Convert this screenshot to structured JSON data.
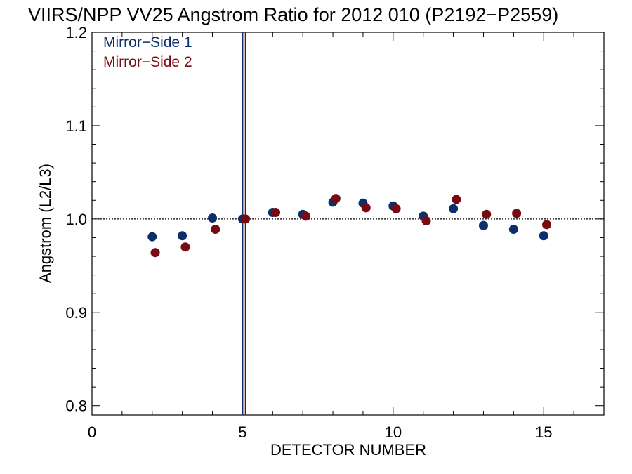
{
  "chart_data": {
    "type": "scatter",
    "title": "VIIRS/NPP VV25 Angstrom Ratio for 2012 010 (P2192−P2559)",
    "xlabel": "DETECTOR NUMBER",
    "ylabel": "Angstrom (L2/L3)",
    "xlim": [
      0,
      17
    ],
    "ylim": [
      0.79,
      1.2
    ],
    "xticks": [
      0,
      5,
      10,
      15
    ],
    "xtick_labels": [
      "0",
      "5",
      "10",
      "15"
    ],
    "yticks": [
      0.8,
      0.9,
      1.0,
      1.1,
      1.2
    ],
    "ytick_labels": [
      "0.8",
      "0.9",
      "1.0",
      "1.1",
      "1.2"
    ],
    "reference_line_y": 1.0,
    "legend_position": "top-left",
    "series": [
      {
        "name": "Mirror−Side 1",
        "color": "#0b2f6b",
        "x": [
          2,
          3,
          4,
          5,
          6,
          7,
          8,
          9,
          10,
          11,
          12,
          13,
          14,
          15
        ],
        "y": [
          0.981,
          0.982,
          1.001,
          1.0,
          1.007,
          1.005,
          1.018,
          1.017,
          1.014,
          1.003,
          1.011,
          0.993,
          0.989,
          0.982
        ],
        "vline_x": 5.0
      },
      {
        "name": "Mirror−Side 2",
        "color": "#7a0a12",
        "x": [
          2.1,
          3.1,
          4.1,
          5.1,
          6.1,
          7.1,
          8.1,
          9.1,
          10.1,
          11.1,
          12.1,
          13.1,
          14.1,
          15.1
        ],
        "y": [
          0.964,
          0.97,
          0.989,
          1.0,
          1.007,
          1.003,
          1.022,
          1.012,
          1.011,
          0.998,
          1.021,
          1.005,
          1.006,
          0.994
        ],
        "vline_x": 5.1
      }
    ]
  }
}
